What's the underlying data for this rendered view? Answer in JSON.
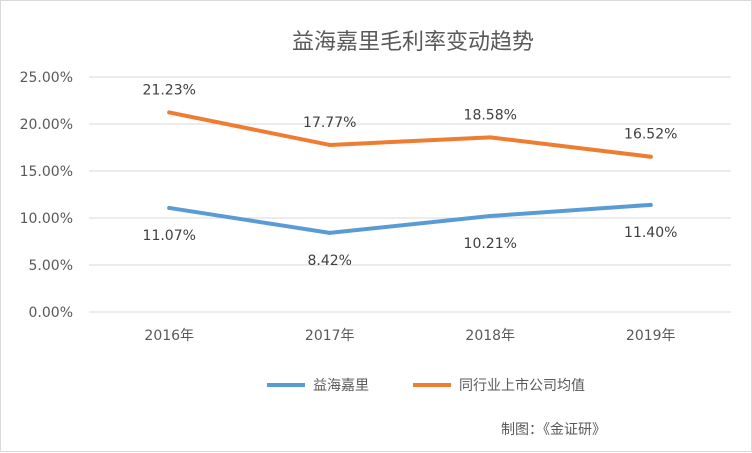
{
  "chart_data": {
    "type": "line",
    "title": "益海嘉里毛利率变动趋势",
    "categories": [
      "2016年",
      "2017年",
      "2018年",
      "2019年"
    ],
    "series": [
      {
        "name": "益海嘉里",
        "color": "#5b9bd5",
        "values": [
          11.07,
          8.42,
          10.21,
          11.4
        ],
        "labels": [
          "11.07%",
          "8.42%",
          "10.21%",
          "11.40%"
        ]
      },
      {
        "name": "同行业上市公司均值",
        "color": "#ed7d31",
        "values": [
          21.23,
          17.77,
          18.58,
          16.52
        ],
        "labels": [
          "21.23%",
          "17.77%",
          "18.58%",
          "16.52%"
        ]
      }
    ],
    "yticks": [
      "0.00%",
      "5.00%",
      "10.00%",
      "15.00%",
      "20.00%",
      "25.00%"
    ],
    "ylim": [
      0,
      25
    ],
    "grid": true,
    "legend_position": "bottom"
  },
  "source_note": "制图：《金证研》"
}
